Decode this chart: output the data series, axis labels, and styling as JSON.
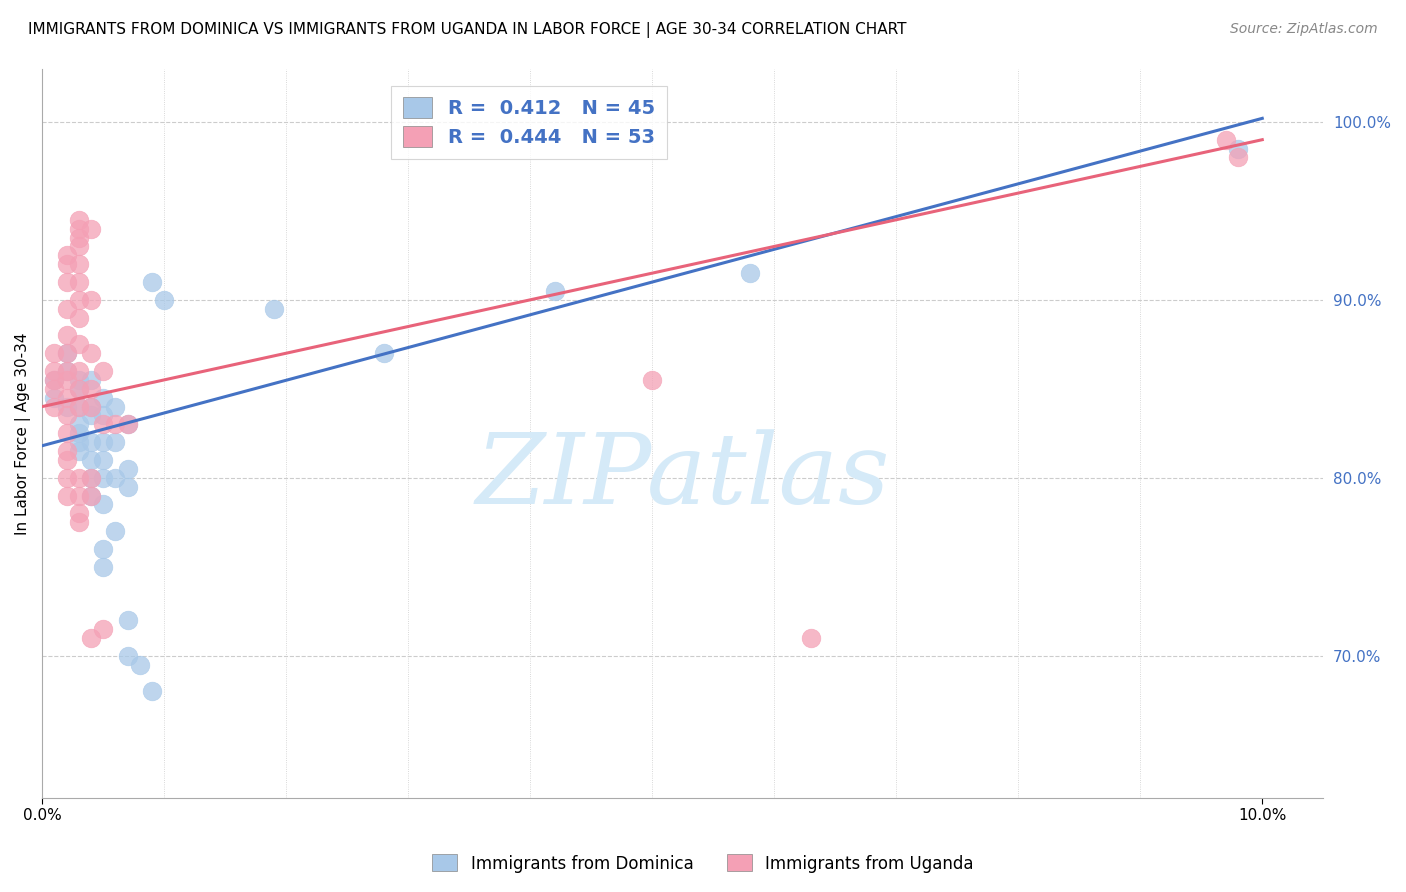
{
  "title": "IMMIGRANTS FROM DOMINICA VS IMMIGRANTS FROM UGANDA IN LABOR FORCE | AGE 30-34 CORRELATION CHART",
  "source": "Source: ZipAtlas.com",
  "ylabel": "In Labor Force | Age 30-34",
  "legend_label_blue": "Immigrants from Dominica",
  "legend_label_pink": "Immigrants from Uganda",
  "R_blue": 0.412,
  "N_blue": 45,
  "R_pink": 0.444,
  "N_pink": 53,
  "color_blue": "#a8c8e8",
  "color_pink": "#f4a0b5",
  "color_blue_line": "#4472c4",
  "color_pink_line": "#e8637a",
  "scatter_blue": [
    [
      0.001,
      0.845
    ],
    [
      0.001,
      0.855
    ],
    [
      0.002,
      0.87
    ],
    [
      0.002,
      0.86
    ],
    [
      0.002,
      0.84
    ],
    [
      0.003,
      0.855
    ],
    [
      0.003,
      0.84
    ],
    [
      0.003,
      0.85
    ],
    [
      0.003,
      0.825
    ],
    [
      0.003,
      0.815
    ],
    [
      0.003,
      0.82
    ],
    [
      0.003,
      0.83
    ],
    [
      0.004,
      0.855
    ],
    [
      0.004,
      0.84
    ],
    [
      0.004,
      0.835
    ],
    [
      0.004,
      0.82
    ],
    [
      0.004,
      0.81
    ],
    [
      0.004,
      0.8
    ],
    [
      0.004,
      0.79
    ],
    [
      0.005,
      0.845
    ],
    [
      0.005,
      0.835
    ],
    [
      0.005,
      0.82
    ],
    [
      0.005,
      0.81
    ],
    [
      0.005,
      0.8
    ],
    [
      0.005,
      0.785
    ],
    [
      0.005,
      0.76
    ],
    [
      0.005,
      0.75
    ],
    [
      0.006,
      0.84
    ],
    [
      0.006,
      0.82
    ],
    [
      0.006,
      0.8
    ],
    [
      0.006,
      0.77
    ],
    [
      0.007,
      0.83
    ],
    [
      0.007,
      0.805
    ],
    [
      0.007,
      0.795
    ],
    [
      0.007,
      0.72
    ],
    [
      0.007,
      0.7
    ],
    [
      0.008,
      0.695
    ],
    [
      0.009,
      0.91
    ],
    [
      0.009,
      0.68
    ],
    [
      0.01,
      0.9
    ],
    [
      0.019,
      0.895
    ],
    [
      0.028,
      0.87
    ],
    [
      0.042,
      0.905
    ],
    [
      0.058,
      0.915
    ],
    [
      0.098,
      0.985
    ]
  ],
  "scatter_pink": [
    [
      0.001,
      0.87
    ],
    [
      0.001,
      0.86
    ],
    [
      0.001,
      0.855
    ],
    [
      0.001,
      0.85
    ],
    [
      0.001,
      0.84
    ],
    [
      0.002,
      0.925
    ],
    [
      0.002,
      0.92
    ],
    [
      0.002,
      0.91
    ],
    [
      0.002,
      0.895
    ],
    [
      0.002,
      0.88
    ],
    [
      0.002,
      0.87
    ],
    [
      0.002,
      0.86
    ],
    [
      0.002,
      0.855
    ],
    [
      0.002,
      0.845
    ],
    [
      0.002,
      0.835
    ],
    [
      0.002,
      0.825
    ],
    [
      0.002,
      0.815
    ],
    [
      0.002,
      0.81
    ],
    [
      0.002,
      0.8
    ],
    [
      0.002,
      0.79
    ],
    [
      0.003,
      0.945
    ],
    [
      0.003,
      0.94
    ],
    [
      0.003,
      0.935
    ],
    [
      0.003,
      0.93
    ],
    [
      0.003,
      0.92
    ],
    [
      0.003,
      0.91
    ],
    [
      0.003,
      0.9
    ],
    [
      0.003,
      0.89
    ],
    [
      0.003,
      0.875
    ],
    [
      0.003,
      0.86
    ],
    [
      0.003,
      0.85
    ],
    [
      0.003,
      0.84
    ],
    [
      0.003,
      0.8
    ],
    [
      0.003,
      0.79
    ],
    [
      0.003,
      0.78
    ],
    [
      0.003,
      0.775
    ],
    [
      0.004,
      0.94
    ],
    [
      0.004,
      0.9
    ],
    [
      0.004,
      0.87
    ],
    [
      0.004,
      0.85
    ],
    [
      0.004,
      0.84
    ],
    [
      0.004,
      0.8
    ],
    [
      0.004,
      0.79
    ],
    [
      0.004,
      0.71
    ],
    [
      0.005,
      0.86
    ],
    [
      0.005,
      0.83
    ],
    [
      0.005,
      0.715
    ],
    [
      0.006,
      0.83
    ],
    [
      0.007,
      0.83
    ],
    [
      0.05,
      0.855
    ],
    [
      0.063,
      0.71
    ],
    [
      0.097,
      0.99
    ],
    [
      0.098,
      0.98
    ]
  ],
  "line_blue": [
    [
      0.0,
      0.818
    ],
    [
      0.1,
      1.002
    ]
  ],
  "line_pink": [
    [
      0.0,
      0.84
    ],
    [
      0.1,
      0.99
    ]
  ],
  "xlim": [
    0.0,
    0.105
  ],
  "ylim": [
    0.62,
    1.03
  ],
  "xtick_positions": [
    0.0,
    0.1
  ],
  "xtick_labels": [
    "0.0%",
    "10.0%"
  ],
  "yticks_right": [
    0.7,
    0.8,
    0.9,
    1.0
  ],
  "ytick_right_labels": [
    "70.0%",
    "80.0%",
    "90.0%",
    "100.0%"
  ],
  "grid_color": "#cccccc",
  "background_color": "#ffffff",
  "watermark_text": "ZIPatlas",
  "watermark_color": "#d5eaf8"
}
